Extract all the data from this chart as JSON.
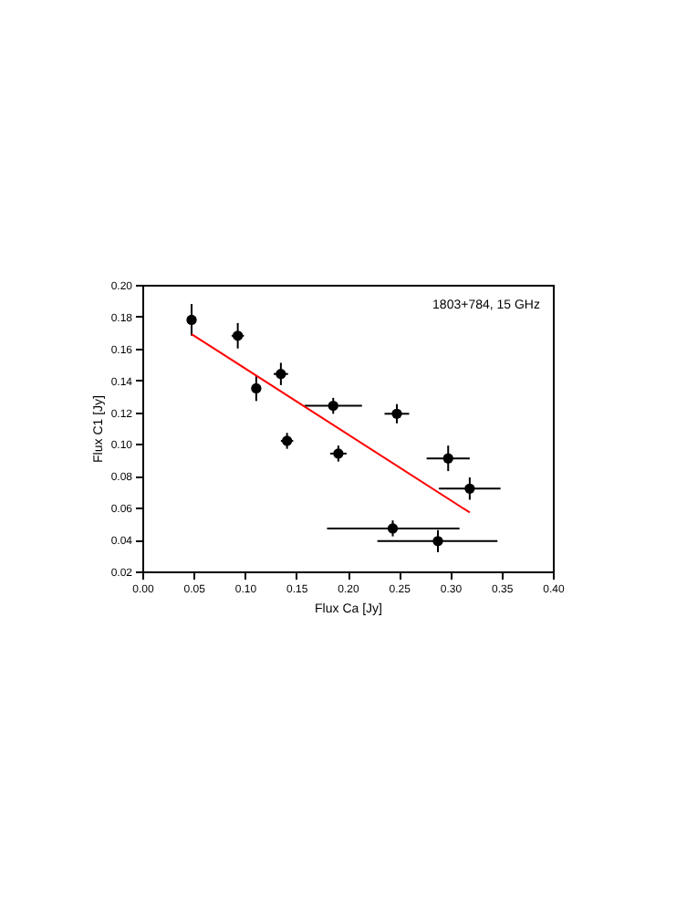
{
  "chart_data": {
    "type": "scatter",
    "xlabel": "Flux Ca [Jy]",
    "ylabel": "Flux C1 [Jy]",
    "annotations": [
      "1803+784, 15 GHz"
    ],
    "xlim": [
      0,
      0.4
    ],
    "ylim": [
      0.02,
      0.2
    ],
    "xticks": [
      {
        "value": 0,
        "label": "0.00"
      },
      {
        "value": 0.05,
        "label": "0.05"
      },
      {
        "value": 0.1,
        "label": "0.10"
      },
      {
        "value": 0.15,
        "label": "0.15"
      },
      {
        "value": 0.2,
        "label": "0.20"
      },
      {
        "value": 0.25,
        "label": "0.25"
      },
      {
        "value": 0.3,
        "label": "0.30"
      },
      {
        "value": 0.35,
        "label": "0.35"
      },
      {
        "value": 0.4,
        "label": "0.40"
      }
    ],
    "yticks": [
      {
        "value": 0.02,
        "label": "0.02"
      },
      {
        "value": 0.04,
        "label": "0.04"
      },
      {
        "value": 0.06,
        "label": "0.06"
      },
      {
        "value": 0.08,
        "label": "0.08"
      },
      {
        "value": 0.1,
        "label": "0.10"
      },
      {
        "value": 0.12,
        "label": "0.12"
      },
      {
        "value": 0.14,
        "label": "0.14"
      },
      {
        "value": 0.16,
        "label": "0.16"
      },
      {
        "value": 0.18,
        "label": "0.18"
      },
      {
        "value": 0.2,
        "label": "0.20"
      }
    ],
    "series": [
      {
        "type": "scatter",
        "marker": "circle",
        "color": "#000000",
        "x": [
          0.048,
          0.093,
          0.111,
          0.135,
          0.141,
          0.186,
          0.191,
          0.248,
          0.298,
          0.319,
          0.244,
          0.288
        ],
        "values": [
          0.178,
          0.168,
          0.135,
          0.144,
          0.102,
          0.124,
          0.094,
          0.119,
          0.091,
          0.072,
          0.047,
          0.039
        ],
        "errors": [
          0.01,
          0.008,
          0.008,
          0.007,
          0.005,
          0.005,
          0.005,
          0.006,
          0.008,
          0.007,
          0.005,
          0.007
        ],
        "xerrors": [
          null,
          0.006,
          0.003,
          0.007,
          0.006,
          0.028,
          0.008,
          0.012,
          0.021,
          0.03,
          [
            0.18,
            0.309
          ],
          [
            0.229,
            0.346
          ]
        ]
      },
      {
        "type": "line",
        "color": "#ff0000",
        "x": [
          0.048,
          0.319
        ],
        "values": [
          0.169,
          0.057
        ]
      }
    ]
  }
}
